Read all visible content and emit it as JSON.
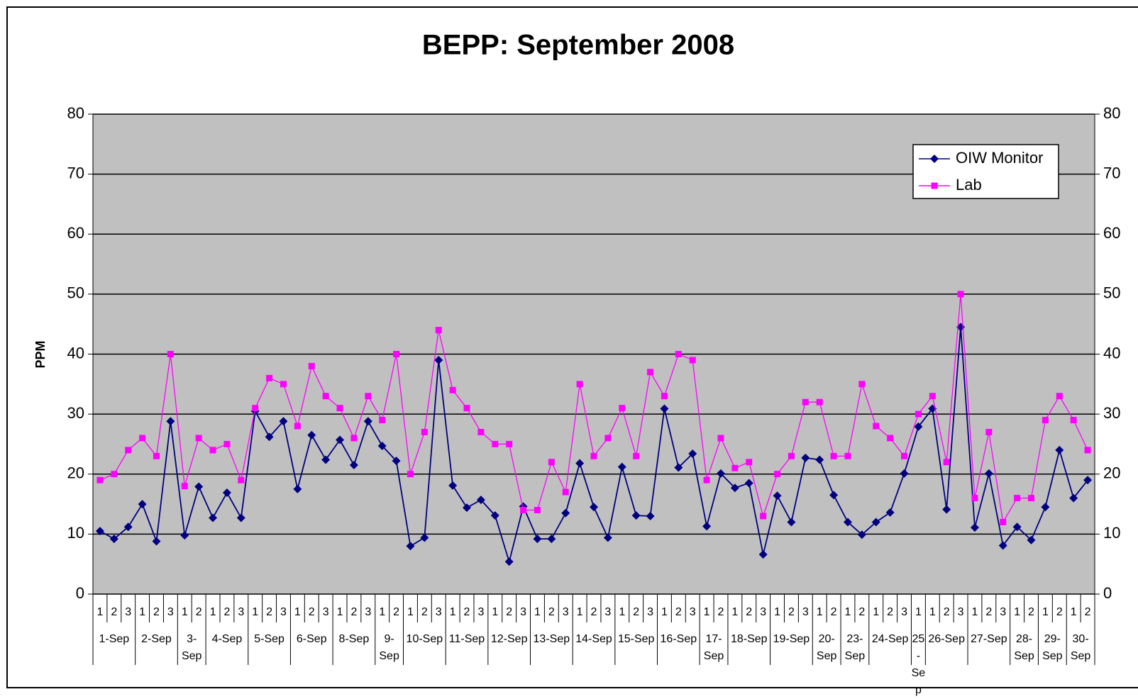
{
  "chart_data": {
    "type": "line",
    "title": "BEPP: September 2008",
    "y_label": "PPM",
    "groups": [
      {
        "label": "1-Sep",
        "categories": [
          "1",
          "2",
          "3"
        ]
      },
      {
        "label": "2-Sep",
        "categories": [
          "1",
          "2",
          "3"
        ]
      },
      {
        "label": "3-Sep",
        "categories": [
          "1",
          "2"
        ]
      },
      {
        "label": "4-Sep",
        "categories": [
          "1",
          "2",
          "3"
        ]
      },
      {
        "label": "5-Sep",
        "categories": [
          "1",
          "2",
          "3"
        ]
      },
      {
        "label": "6-Sep",
        "categories": [
          "1",
          "2",
          "3"
        ]
      },
      {
        "label": "8-Sep",
        "categories": [
          "1",
          "2",
          "3"
        ]
      },
      {
        "label": "9-Sep",
        "categories": [
          "1",
          "2"
        ]
      },
      {
        "label": "10-Sep",
        "categories": [
          "1",
          "2",
          "3"
        ]
      },
      {
        "label": "11-Sep",
        "categories": [
          "1",
          "2",
          "3"
        ]
      },
      {
        "label": "12-Sep",
        "categories": [
          "1",
          "2",
          "3"
        ]
      },
      {
        "label": "13-Sep",
        "categories": [
          "1",
          "2",
          "3"
        ]
      },
      {
        "label": "14-Sep",
        "categories": [
          "1",
          "2",
          "3"
        ]
      },
      {
        "label": "15-Sep",
        "categories": [
          "1",
          "2",
          "3"
        ]
      },
      {
        "label": "16-Sep",
        "categories": [
          "1",
          "2",
          "3"
        ]
      },
      {
        "label": "17-Sep",
        "categories": [
          "1",
          "2"
        ]
      },
      {
        "label": "18-Sep",
        "categories": [
          "1",
          "2",
          "3"
        ]
      },
      {
        "label": "19-Sep",
        "categories": [
          "1",
          "2",
          "3"
        ]
      },
      {
        "label": "20-Sep",
        "categories": [
          "1",
          "2"
        ]
      },
      {
        "label": "23-Sep",
        "categories": [
          "1",
          "2"
        ]
      },
      {
        "label": "24-Sep",
        "categories": [
          "1",
          "2",
          "3"
        ]
      },
      {
        "label": "25-Sep",
        "categories": [
          "1"
        ]
      },
      {
        "label": "26-Sep",
        "categories": [
          "1",
          "2",
          "3"
        ]
      },
      {
        "label": "27-Sep",
        "categories": [
          "1",
          "2",
          "3"
        ]
      },
      {
        "label": "28-Sep",
        "categories": [
          "1",
          "2"
        ]
      },
      {
        "label": "29-Sep",
        "categories": [
          "1",
          "2"
        ]
      },
      {
        "label": "30-Sep",
        "categories": [
          "1",
          "2"
        ]
      }
    ],
    "series": [
      {
        "name": "OIW Monitor",
        "color": "#000080",
        "marker": "diamond",
        "values": [
          10.5,
          9.2,
          11.2,
          15,
          8.8,
          28.8,
          9.8,
          17.9,
          12.7,
          16.9,
          12.7,
          30.5,
          26.2,
          28.8,
          17.5,
          26.5,
          22.4,
          25.7,
          21.5,
          28.8,
          24.7,
          22.2,
          8,
          9.4,
          39,
          18.1,
          14.4,
          15.7,
          13.1,
          5.4,
          14.6,
          9.2,
          9.2,
          13.5,
          21.8,
          14.5,
          9.4,
          21.2,
          13.1,
          13,
          30.9,
          21.1,
          23.4,
          11.3,
          20.1,
          17.7,
          18.5,
          6.6,
          16.4,
          12,
          22.7,
          22.4,
          16.5,
          12,
          9.9,
          12,
          13.6,
          20.1,
          27.9,
          30.9,
          14.1,
          44.5,
          11.1,
          20.1,
          8.1,
          11.2,
          9,
          14.5,
          24,
          16,
          19
        ]
      },
      {
        "name": "Lab",
        "color": "#ff00ff",
        "marker": "square",
        "values": [
          19,
          20,
          24,
          26,
          23,
          40,
          18,
          26,
          24,
          25,
          19,
          31,
          36,
          35,
          28,
          38,
          33,
          31,
          26,
          33,
          29,
          40,
          20,
          27,
          44,
          34,
          31,
          27,
          25,
          25,
          14,
          14,
          22,
          17,
          35,
          23,
          26,
          31,
          23,
          37,
          33,
          40,
          39,
          19,
          26,
          21,
          22,
          13,
          20,
          23,
          32,
          32,
          23,
          23,
          35,
          28,
          26,
          23,
          30,
          33,
          22,
          50,
          16,
          27,
          12,
          16,
          16,
          29,
          33,
          29,
          24
        ]
      }
    ],
    "ylim": [
      0,
      80
    ],
    "yticks": [
      0,
      10,
      20,
      30,
      40,
      50,
      60,
      70,
      80
    ],
    "y2lim": [
      0,
      80
    ],
    "y2ticks": [
      0,
      10,
      20,
      30,
      40,
      50,
      60,
      70,
      80
    ],
    "grid": true,
    "legend": "top-right",
    "plot_background": "#c0c0c0"
  }
}
